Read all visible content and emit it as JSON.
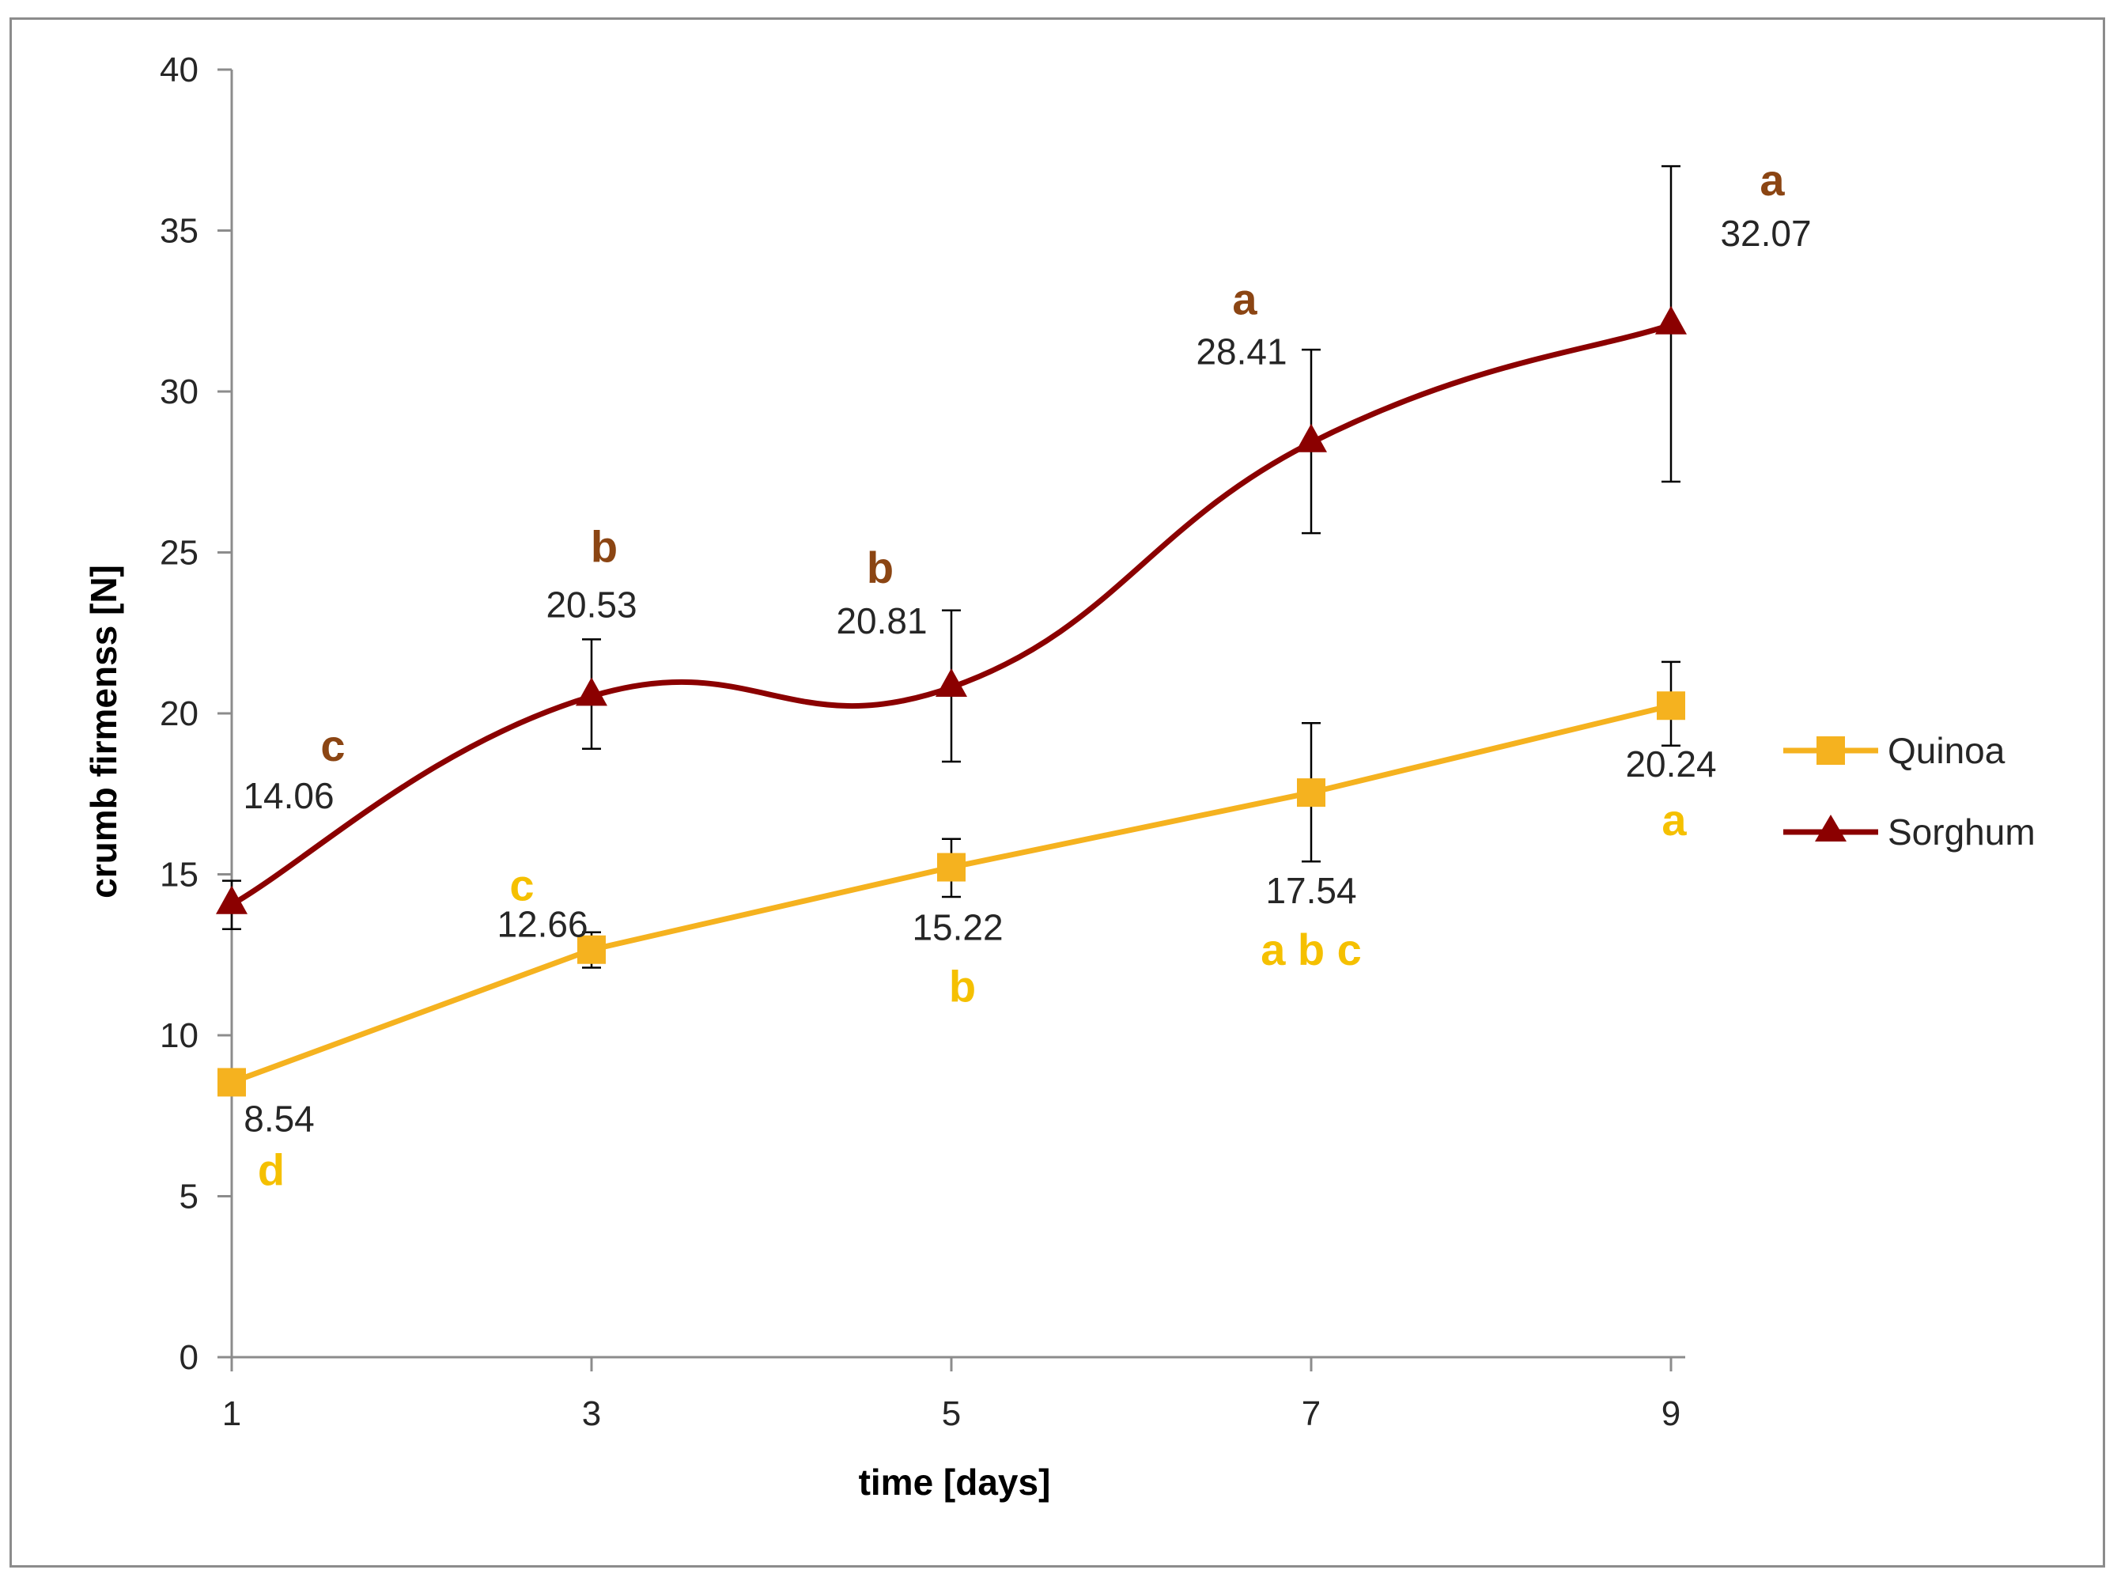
{
  "chart_data": {
    "type": "line",
    "title": "",
    "xlabel": "time [days]",
    "ylabel": "crumb firmenss [N]",
    "x": [
      1,
      3,
      5,
      7,
      9
    ],
    "x_ticks": [
      "1",
      "3",
      "5",
      "7",
      "9"
    ],
    "ylim": [
      0,
      40
    ],
    "y_ticks": [
      "0",
      "5",
      "10",
      "15",
      "20",
      "25",
      "30",
      "35",
      "40"
    ],
    "grid": false,
    "legend_position": "right",
    "series": [
      {
        "name": "Quinoa",
        "color": "#F5B21F",
        "label_color": "#F5C000",
        "marker": "square",
        "smooth": false,
        "values": [
          8.54,
          12.66,
          15.22,
          17.54,
          20.24
        ],
        "value_labels": [
          "8.54",
          "12.66",
          "15.22",
          "17.54",
          "20.24"
        ],
        "error_low": [
          null,
          12.1,
          14.3,
          15.4,
          19.0
        ],
        "error_high": [
          null,
          13.2,
          16.1,
          19.7,
          21.6
        ],
        "letters": [
          "d",
          "c",
          "b",
          "a b c",
          "a"
        ]
      },
      {
        "name": "Sorghum",
        "color": "#8B0000",
        "label_color": "#8B4513",
        "marker": "triangle",
        "smooth": true,
        "values": [
          14.06,
          20.53,
          20.81,
          28.41,
          32.07
        ],
        "value_labels": [
          "14.06",
          "20.53",
          "20.81",
          "28.41",
          "32.07"
        ],
        "error_low": [
          13.3,
          18.9,
          18.5,
          25.6,
          27.2
        ],
        "error_high": [
          14.8,
          22.3,
          23.2,
          31.3,
          37.0
        ],
        "letters": [
          "c",
          "b",
          "b",
          "a",
          "a"
        ]
      }
    ]
  }
}
